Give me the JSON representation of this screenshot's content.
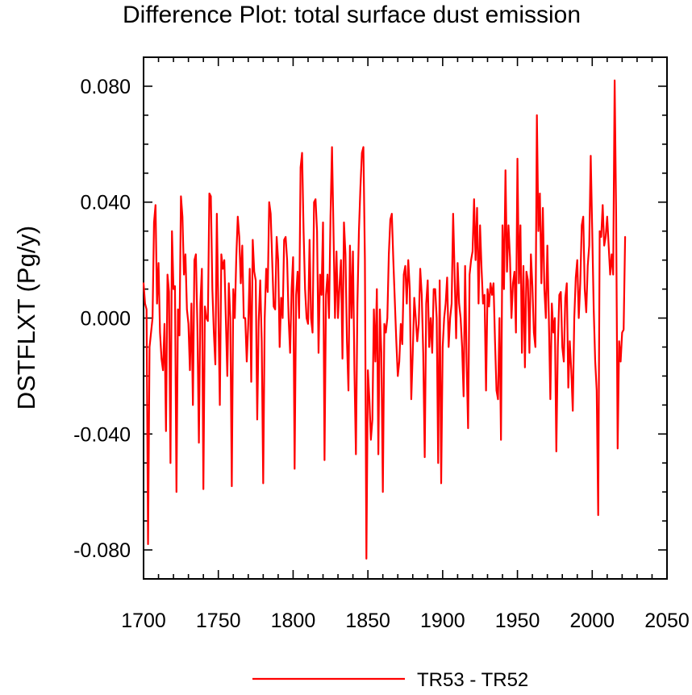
{
  "chart_data": {
    "type": "line",
    "title": "Difference Plot: total surface dust emission",
    "xlabel": "",
    "ylabel": "DSTFLXT  (Pg/y)",
    "xlim": [
      1700,
      2050
    ],
    "ylim": [
      -0.09,
      0.09
    ],
    "xticks": [
      1700,
      1750,
      1800,
      1850,
      1900,
      1950,
      2000,
      2050
    ],
    "yticks": [
      -0.08,
      -0.04,
      0.0,
      0.04,
      0.08
    ],
    "xtick_labels": [
      "1700",
      "1750",
      "1800",
      "1850",
      "1900",
      "1950",
      "2000",
      "2050"
    ],
    "ytick_labels": [
      "-0.080",
      "-0.040",
      "0.000",
      "0.040",
      "0.080"
    ],
    "grid": false,
    "legend_position": "bottom-center",
    "series": [
      {
        "name": "TR53 - TR52",
        "color": "#ff0000",
        "x_start": 1700,
        "x_step": 1,
        "values": [
          0.012,
          0.005,
          0.003,
          -0.078,
          -0.01,
          -0.005,
          0.0,
          0.033,
          0.039,
          0.005,
          0.019,
          -0.005,
          -0.014,
          -0.018,
          -0.002,
          -0.039,
          0.015,
          0.009,
          -0.05,
          0.03,
          0.01,
          0.011,
          -0.06,
          0.003,
          -0.006,
          0.042,
          0.035,
          0.015,
          0.022,
          0.003,
          -0.002,
          -0.018,
          0.005,
          -0.03,
          0.02,
          0.022,
          -0.003,
          -0.043,
          0.005,
          0.017,
          -0.059,
          0.004,
          0.0,
          -0.001,
          0.043,
          0.042,
          0.01,
          -0.005,
          -0.016,
          0.036,
          0.003,
          -0.03,
          0.022,
          0.017,
          0.02,
          0.0,
          -0.02,
          0.012,
          0.0,
          -0.058,
          0.01,
          0.0,
          0.021,
          0.035,
          0.028,
          0.012,
          0.025,
          0.0,
          0.0,
          -0.015,
          -0.002,
          0.017,
          -0.022,
          0.027,
          0.016,
          0.013,
          -0.035,
          -0.001,
          0.013,
          -0.008,
          -0.057,
          0.0,
          0.017,
          0.009,
          0.04,
          0.036,
          0.02,
          0.004,
          0.003,
          0.028,
          0.02,
          -0.01,
          0.007,
          0.0,
          0.027,
          0.028,
          0.02,
          0.0,
          -0.012,
          0.01,
          0.021,
          -0.052,
          0.008,
          0.016,
          0.0,
          0.052,
          0.057,
          0.03,
          0.01,
          0.0,
          -0.002,
          0.027,
          0.0,
          -0.005,
          0.04,
          0.041,
          0.03,
          -0.012,
          0.015,
          0.008,
          0.033,
          -0.049,
          0.008,
          0.015,
          0.0,
          0.035,
          0.059,
          0.03,
          0.0,
          0.023,
          0.0,
          0.011,
          0.02,
          -0.014,
          0.033,
          0.022,
          -0.008,
          -0.025,
          0.025,
          0.0,
          0.023,
          -0.018,
          -0.047,
          0.005,
          0.03,
          0.045,
          0.057,
          0.059,
          0.02,
          -0.083,
          -0.018,
          -0.028,
          -0.042,
          -0.035,
          0.003,
          -0.015,
          0.01,
          -0.047,
          0.003,
          -0.012,
          -0.06,
          -0.002,
          -0.005,
          0.0,
          0.022,
          0.034,
          0.036,
          0.02,
          0.006,
          -0.008,
          -0.02,
          -0.015,
          -0.002,
          -0.009,
          0.015,
          0.018,
          0.005,
          0.02,
          0.01,
          -0.028,
          -0.012,
          0.007,
          0.0,
          -0.008,
          -0.002,
          0.017,
          0.008,
          -0.012,
          -0.048,
          0.005,
          0.013,
          -0.01,
          0.0,
          -0.012,
          0.01,
          0.01,
          0.0,
          -0.05,
          0.013,
          -0.057,
          -0.01,
          0.0,
          0.005,
          0.014,
          -0.01,
          0.0,
          0.005,
          0.036,
          0.015,
          -0.007,
          0.019,
          0.005,
          0.0,
          -0.01,
          -0.027,
          0.018,
          -0.015,
          -0.038,
          0.015,
          0.02,
          0.023,
          0.041,
          0.02,
          0.038,
          0.005,
          0.032,
          0.017,
          0.005,
          0.008,
          -0.025,
          0.01,
          0.004,
          0.012,
          0.008,
          0.012,
          -0.008,
          -0.025,
          -0.028,
          0.0,
          -0.042,
          0.032,
          0.01,
          0.051,
          0.016,
          0.032,
          0.021,
          0.0,
          0.012,
          0.016,
          -0.005,
          0.055,
          0.012,
          0.032,
          -0.012,
          0.018,
          -0.017,
          0.016,
          0.013,
          -0.012,
          0.022,
          0.011,
          -0.005,
          -0.01,
          0.07,
          0.03,
          0.043,
          0.012,
          0.038,
          0.01,
          0.0,
          0.025,
          0.0,
          -0.028,
          0.005,
          -0.005,
          0.0,
          -0.046,
          -0.01,
          0.008,
          0.009,
          -0.01,
          -0.015,
          0.007,
          0.012,
          -0.024,
          -0.008,
          -0.018,
          -0.032,
          0.0,
          0.014,
          0.02,
          0.0,
          0.012,
          0.032,
          0.035,
          0.01,
          0.002,
          0.018,
          0.025,
          0.056,
          0.03,
          0.003,
          -0.015,
          -0.025,
          -0.068,
          0.03,
          0.028,
          0.039,
          0.025,
          0.028,
          0.035,
          0.025,
          0.015,
          0.022,
          0.015,
          0.082,
          0.035,
          -0.045,
          -0.008,
          -0.015,
          -0.005,
          -0.004,
          0.028
        ]
      }
    ]
  }
}
